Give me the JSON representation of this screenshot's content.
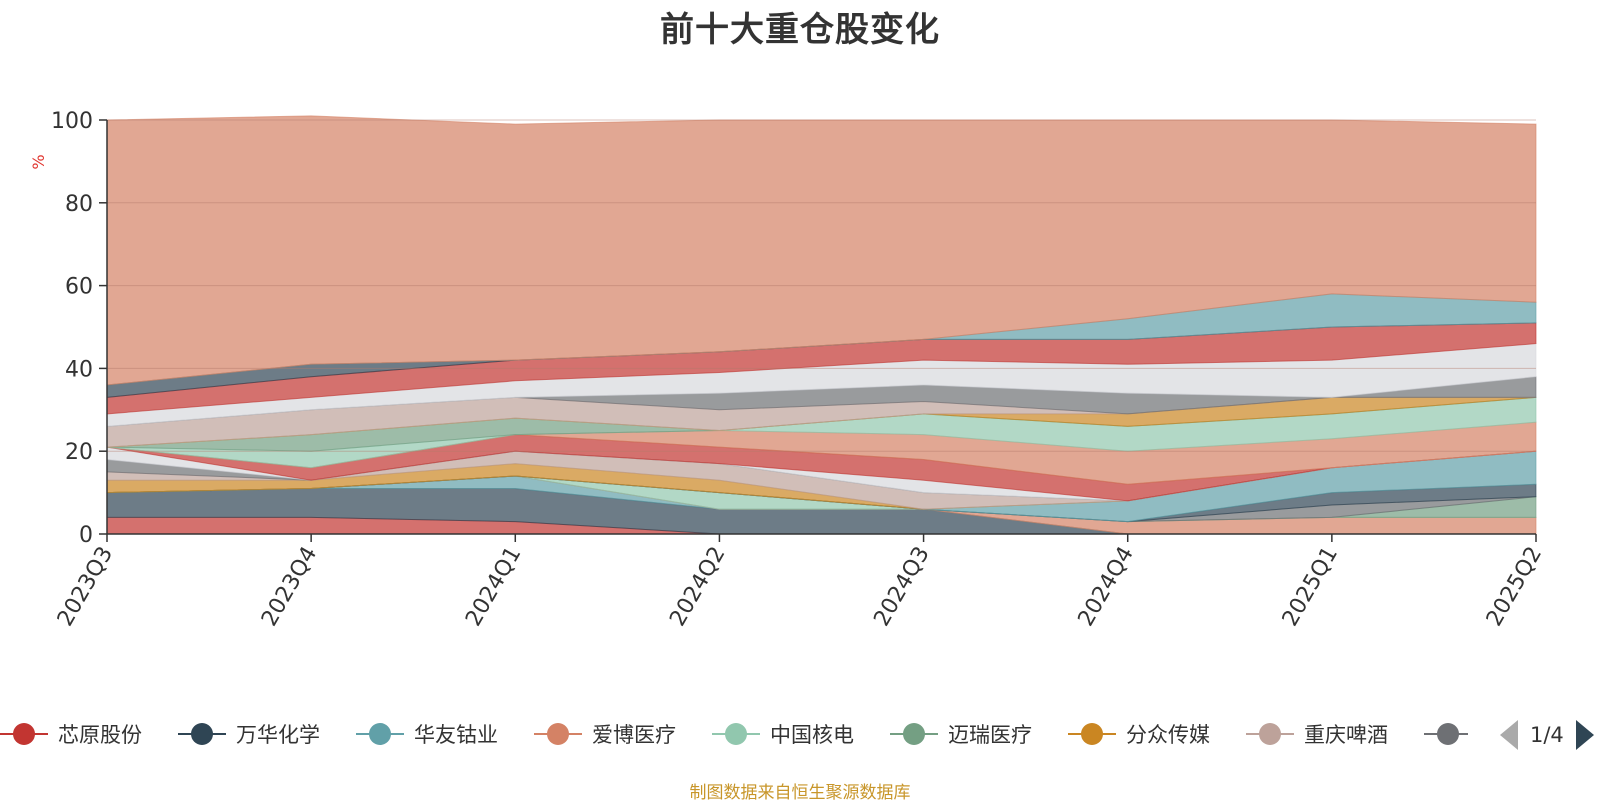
{
  "title": "前十大重仓股变化",
  "source_note": "制图数据来自恒生聚源数据库",
  "legend": {
    "items": [
      {
        "label": "芯原股份",
        "color": "#c23531"
      },
      {
        "label": "万华化学",
        "color": "#2f4554"
      },
      {
        "label": "华友钴业",
        "color": "#61a0a8"
      },
      {
        "label": "爱博医疗",
        "color": "#d48265"
      },
      {
        "label": "中国核电",
        "color": "#91c7ae"
      },
      {
        "label": "迈瑞医疗",
        "color": "#749f83"
      },
      {
        "label": "分众传媒",
        "color": "#ca8622"
      },
      {
        "label": "重庆啤酒",
        "color": "#bda29a"
      },
      {
        "label": "",
        "color": "#6e7074"
      }
    ],
    "page_text": "1/4"
  },
  "chart_data": {
    "type": "area",
    "stacked": true,
    "title": "前十大重仓股变化",
    "ylabel": "%",
    "ylim": [
      0,
      100
    ],
    "yticks": [
      0,
      20,
      40,
      60,
      80,
      100
    ],
    "grid": true,
    "x": [
      "2023Q3",
      "2023Q4",
      "2024Q1",
      "2024Q2",
      "2024Q3",
      "2024Q4",
      "2025Q1",
      "2025Q2"
    ],
    "series": [
      {
        "color": "#c23531",
        "values": [
          4,
          4,
          3,
          0,
          0,
          0,
          0,
          0
        ]
      },
      {
        "color": "#2f4554",
        "values": [
          6,
          7,
          8,
          6,
          6,
          0,
          0,
          0
        ]
      },
      {
        "color": "#61a0a8",
        "values": [
          0,
          0,
          3,
          0,
          0,
          0,
          0,
          0
        ]
      },
      {
        "color": "#d48265",
        "values": [
          0,
          0,
          0,
          0,
          0,
          3,
          4,
          4
        ]
      },
      {
        "color": "#91c7ae",
        "values": [
          0,
          0,
          0,
          4,
          0,
          0,
          0,
          0
        ]
      },
      {
        "color": "#749f83",
        "values": [
          0,
          0,
          0,
          0,
          0,
          0,
          0,
          5
        ]
      },
      {
        "color": "#6e7074",
        "values": [
          0,
          0,
          0,
          0,
          0,
          0,
          3,
          0
        ]
      },
      {
        "color": "#2f4554",
        "values": [
          0,
          0,
          0,
          0,
          0,
          0,
          3,
          3
        ]
      },
      {
        "color": "#61a0a8",
        "values": [
          0,
          0,
          0,
          0,
          0,
          5,
          6,
          8
        ]
      },
      {
        "color": "#ca8622",
        "values": [
          3,
          2,
          3,
          3,
          0,
          0,
          0,
          0
        ]
      },
      {
        "color": "#bda29a",
        "values": [
          2,
          0,
          3,
          4,
          4,
          0,
          0,
          0
        ]
      },
      {
        "color": "#6e7074",
        "values": [
          3,
          0,
          0,
          0,
          0,
          0,
          0,
          0
        ]
      },
      {
        "color": "#d7d9dd",
        "values": [
          3,
          0,
          0,
          0,
          3,
          0,
          0,
          0
        ]
      },
      {
        "color": "#c23531",
        "values": [
          0,
          3,
          4,
          4,
          5,
          4,
          0,
          0
        ]
      },
      {
        "color": "#d48265",
        "values": [
          0,
          0,
          0,
          4,
          6,
          8,
          7,
          7
        ]
      },
      {
        "color": "#91c7ae",
        "values": [
          0,
          4,
          0,
          0,
          5,
          6,
          6,
          6
        ]
      },
      {
        "color": "#749f83",
        "values": [
          0,
          4,
          4,
          0,
          0,
          0,
          0,
          0
        ]
      },
      {
        "color": "#ca8622",
        "values": [
          0,
          0,
          0,
          0,
          0,
          3,
          4,
          0
        ]
      },
      {
        "color": "#bda29a",
        "values": [
          5,
          6,
          5,
          5,
          3,
          0,
          0,
          0
        ]
      },
      {
        "color": "#6e7074",
        "values": [
          0,
          0,
          0,
          4,
          4,
          5,
          0,
          5
        ]
      },
      {
        "color": "#d7d9dd",
        "values": [
          3,
          3,
          4,
          5,
          6,
          7,
          9,
          8
        ]
      },
      {
        "color": "#c23531",
        "values": [
          4,
          5,
          5,
          5,
          5,
          6,
          8,
          5
        ]
      },
      {
        "color": "#2f4554",
        "values": [
          3,
          3,
          0,
          0,
          0,
          0,
          0,
          0
        ]
      },
      {
        "color": "#61a0a8",
        "values": [
          0,
          0,
          0,
          0,
          0,
          5,
          8,
          5
        ]
      },
      {
        "color": "#d48265",
        "values": [
          64,
          60,
          57,
          56,
          53,
          48,
          42,
          43
        ]
      }
    ]
  }
}
